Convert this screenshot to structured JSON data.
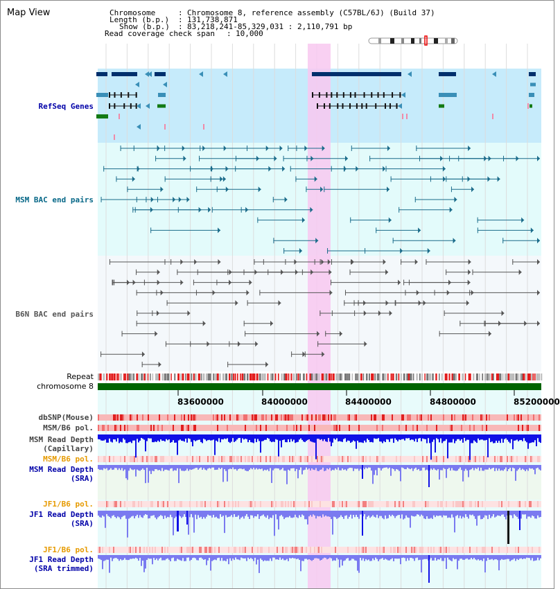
{
  "app": {
    "title": "Map View"
  },
  "header": {
    "chromosome_key": "Chromosome",
    "chromosome_val": "Chromosome 8, reference assembly (C57BL/6J) (Build 37)",
    "length_key": "Length (b.p.)",
    "length_val": "131,738,871",
    "show_key": "Show (b.p.)",
    "show_val": "83,218,241-85,329,031 : 2,110,791 bp",
    "coverage_key": "Read coverage check span",
    "coverage_val": "10,000",
    "sep": ":"
  },
  "tracks": {
    "refseq": "RefSeq Genes",
    "msm_bac": "MSM BAC end pairs",
    "b6n_bac": "B6N BAC end pairs",
    "repeat": "Repeat",
    "chromosome": "chromosome 8",
    "dbsnp": "dbSNP(Mouse)",
    "msm_b6_pol_1": "MSM/B6 pol.",
    "msm_depth_cap_1": "MSM Read Depth",
    "msm_depth_cap_2": "(Capillary)",
    "msm_b6_pol_2": "MSM/B6 pol.",
    "msm_depth_sra_1": "MSM Read Depth",
    "msm_depth_sra_2": "(SRA)",
    "jf1_b6_pol_1": "JF1/B6 pol.",
    "jf1_depth_sra_1": "JF1 Read Depth",
    "jf1_depth_sra_2": "(SRA)",
    "jf1_b6_pol_2": "JF1/B6 pol.",
    "jf1_depth_trim_1": "JF1 Read Depth",
    "jf1_depth_trim_2": "(SRA trimmed)"
  },
  "axis": {
    "ticks": [
      "83600000",
      "84000000",
      "84400000",
      "84800000",
      "85200000"
    ]
  },
  "colors": {
    "refseq_bg": "#c6ebfb",
    "msm_bg": "#e3fbfb",
    "b6n_bg": "#f4f8fb",
    "highlight": "#f8c8f0",
    "chromosome": "#006400",
    "gene_dark": "#002f6c",
    "gene_mid": "#3a8fb7",
    "gene_green": "#137a13",
    "msm_line": "#1a6b8a",
    "b6n_line": "#555555",
    "depth_blue": "#1010e6",
    "depth_light": "#7a7af0",
    "snp_red": "#e83a3a"
  }
}
